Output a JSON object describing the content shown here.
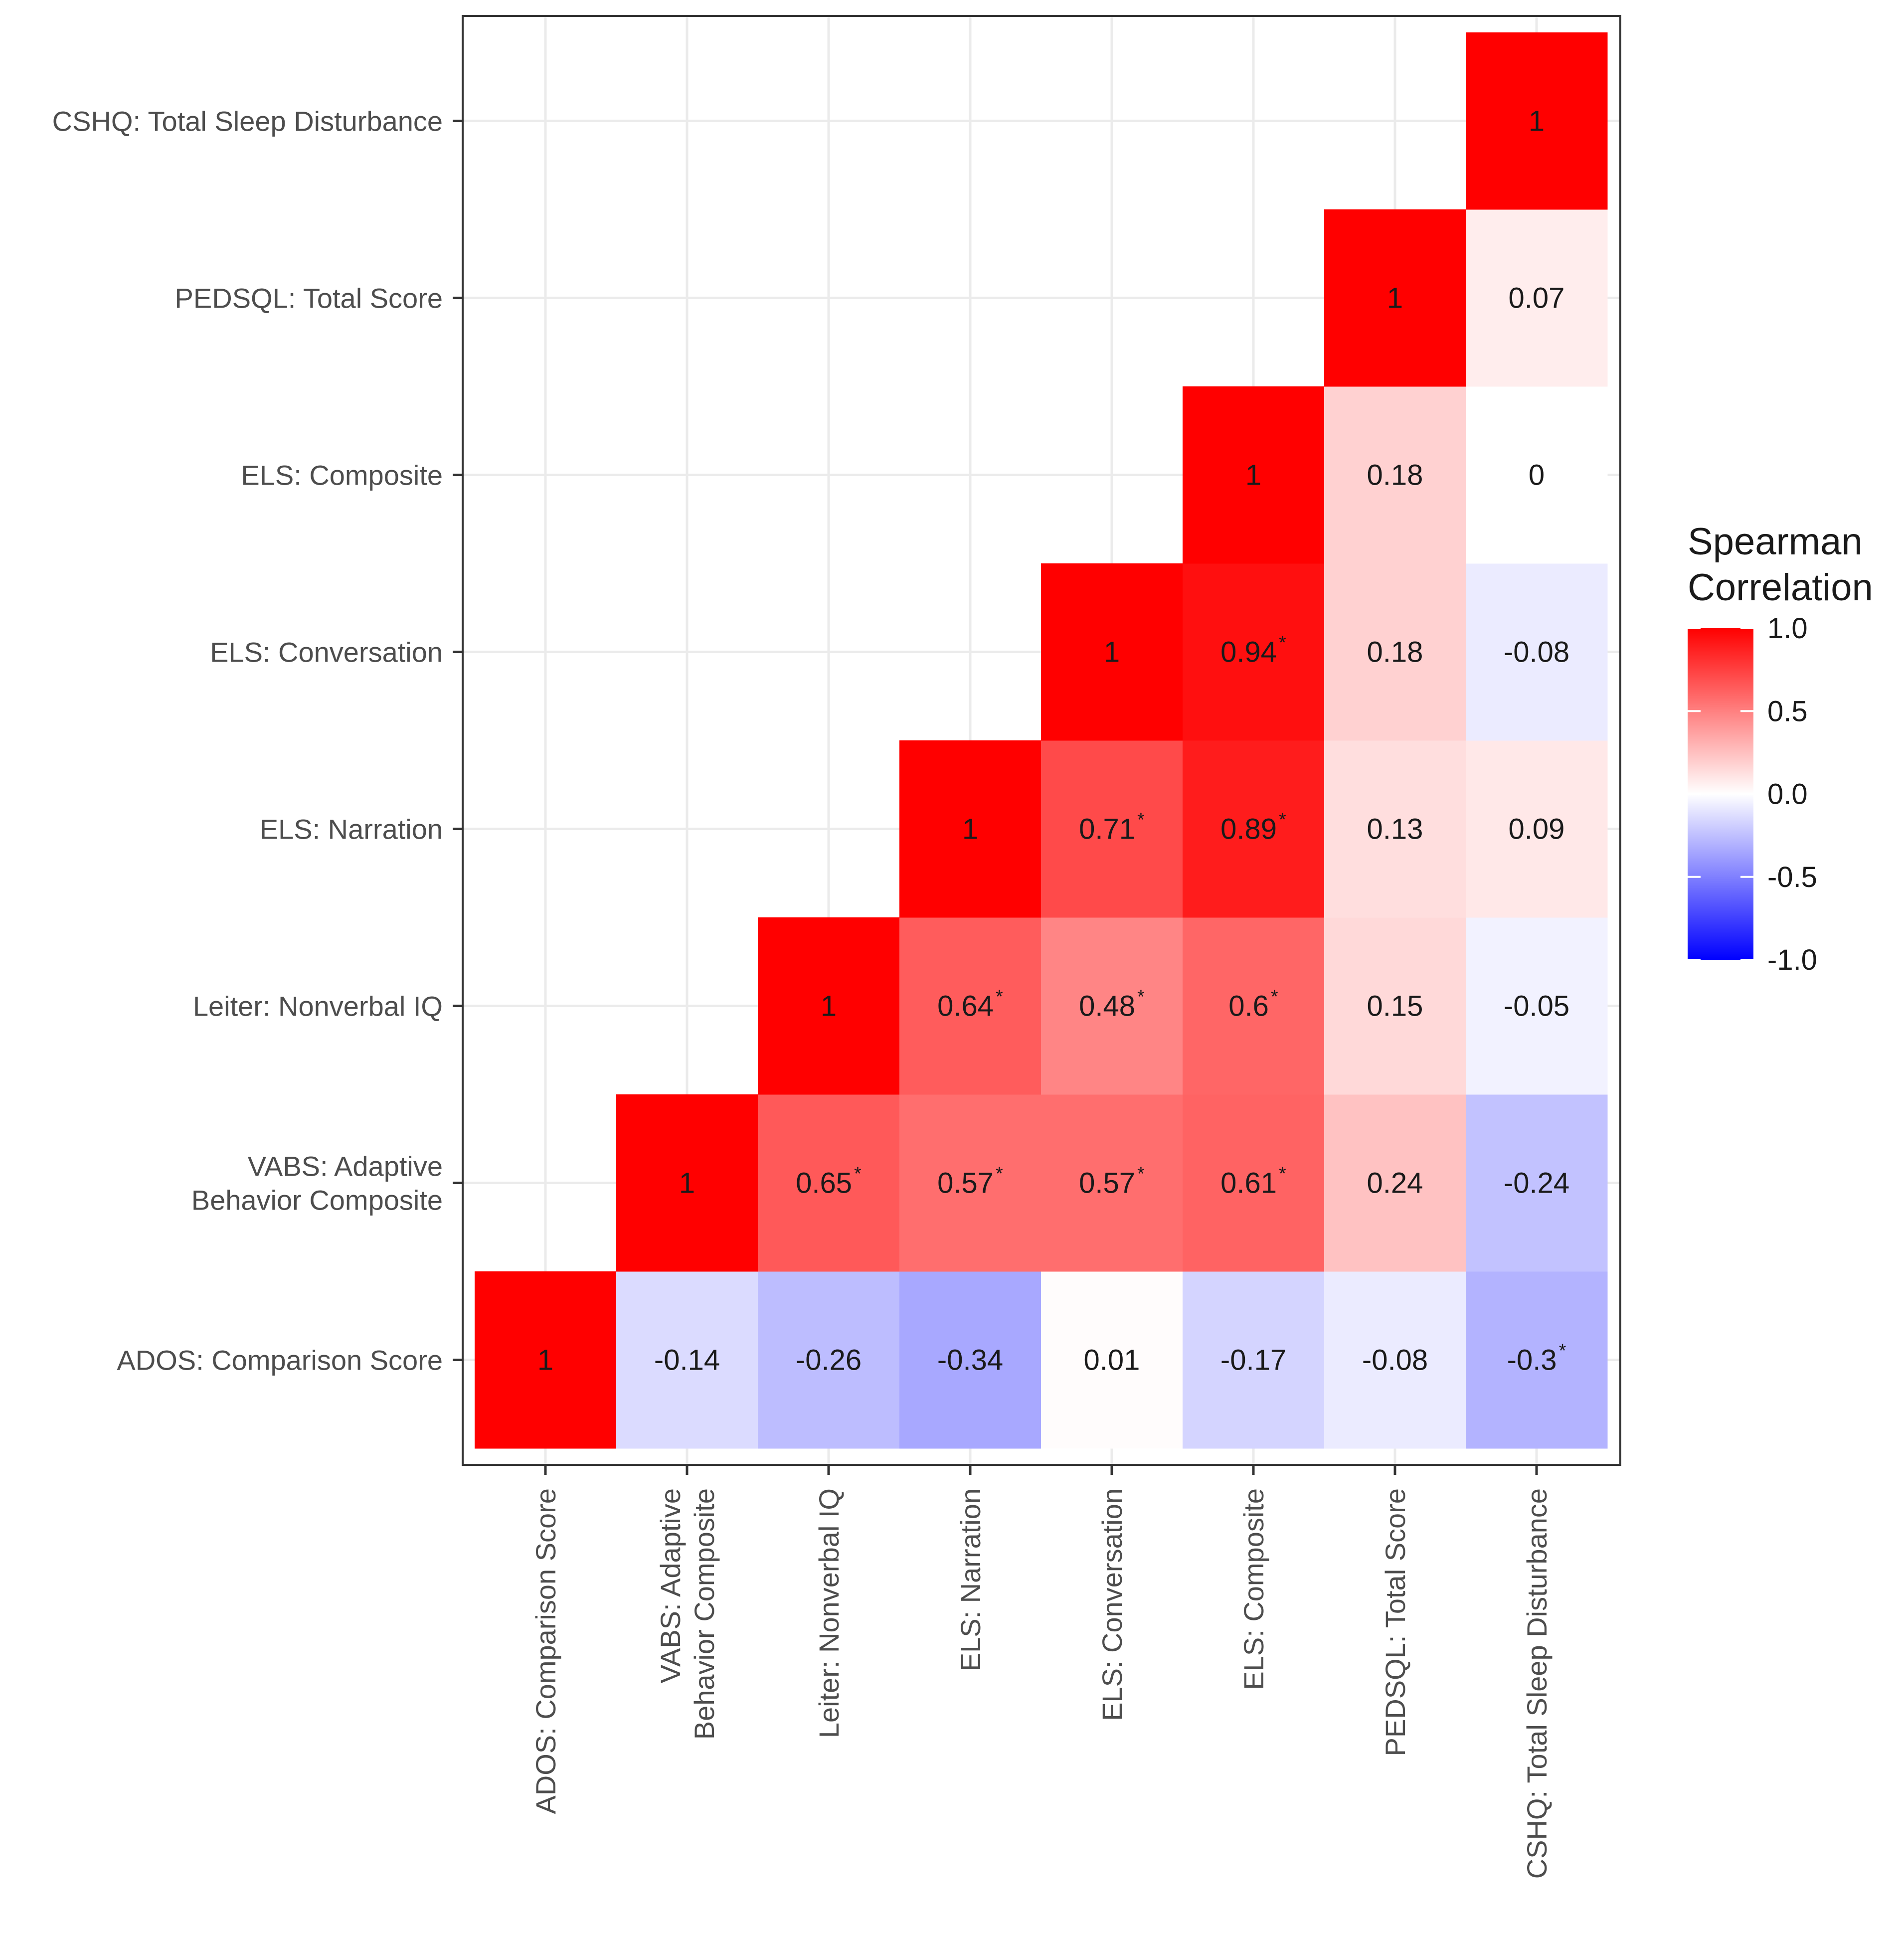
{
  "chart_data": {
    "type": "heatmap",
    "title": "",
    "xlabel": "",
    "ylabel": "",
    "variables": [
      "ADOS: Comparison Score",
      "VABS: Adaptive\nBehavior Composite",
      "Leiter: Nonverbal IQ",
      "ELS: Narration",
      "ELS: Conversation",
      "ELS: Composite",
      "PEDSQL: Total Score",
      "CSHQ: Total Sleep Disturbance"
    ],
    "cells": [
      {
        "x": 0,
        "y": 0,
        "value": 1,
        "label": "1",
        "sig": false
      },
      {
        "x": 1,
        "y": 0,
        "value": -0.14,
        "label": "-0.14",
        "sig": false
      },
      {
        "x": 2,
        "y": 0,
        "value": -0.26,
        "label": "-0.26",
        "sig": false
      },
      {
        "x": 3,
        "y": 0,
        "value": -0.34,
        "label": "-0.34",
        "sig": false
      },
      {
        "x": 4,
        "y": 0,
        "value": 0.01,
        "label": "0.01",
        "sig": false
      },
      {
        "x": 5,
        "y": 0,
        "value": -0.17,
        "label": "-0.17",
        "sig": false
      },
      {
        "x": 6,
        "y": 0,
        "value": -0.08,
        "label": "-0.08",
        "sig": false
      },
      {
        "x": 7,
        "y": 0,
        "value": -0.3,
        "label": "-0.3",
        "sig": true
      },
      {
        "x": 1,
        "y": 1,
        "value": 1,
        "label": "1",
        "sig": false
      },
      {
        "x": 2,
        "y": 1,
        "value": 0.65,
        "label": "0.65",
        "sig": true
      },
      {
        "x": 3,
        "y": 1,
        "value": 0.57,
        "label": "0.57",
        "sig": true
      },
      {
        "x": 4,
        "y": 1,
        "value": 0.57,
        "label": "0.57",
        "sig": true
      },
      {
        "x": 5,
        "y": 1,
        "value": 0.61,
        "label": "0.61",
        "sig": true
      },
      {
        "x": 6,
        "y": 1,
        "value": 0.24,
        "label": "0.24",
        "sig": false
      },
      {
        "x": 7,
        "y": 1,
        "value": -0.24,
        "label": "-0.24",
        "sig": false
      },
      {
        "x": 2,
        "y": 2,
        "value": 1,
        "label": "1",
        "sig": false
      },
      {
        "x": 3,
        "y": 2,
        "value": 0.64,
        "label": "0.64",
        "sig": true
      },
      {
        "x": 4,
        "y": 2,
        "value": 0.48,
        "label": "0.48",
        "sig": true
      },
      {
        "x": 5,
        "y": 2,
        "value": 0.6,
        "label": "0.6",
        "sig": true
      },
      {
        "x": 6,
        "y": 2,
        "value": 0.15,
        "label": "0.15",
        "sig": false
      },
      {
        "x": 7,
        "y": 2,
        "value": -0.05,
        "label": "-0.05",
        "sig": false
      },
      {
        "x": 3,
        "y": 3,
        "value": 1,
        "label": "1",
        "sig": false
      },
      {
        "x": 4,
        "y": 3,
        "value": 0.71,
        "label": "0.71",
        "sig": true
      },
      {
        "x": 5,
        "y": 3,
        "value": 0.89,
        "label": "0.89",
        "sig": true
      },
      {
        "x": 6,
        "y": 3,
        "value": 0.13,
        "label": "0.13",
        "sig": false
      },
      {
        "x": 7,
        "y": 3,
        "value": 0.09,
        "label": "0.09",
        "sig": false
      },
      {
        "x": 4,
        "y": 4,
        "value": 1,
        "label": "1",
        "sig": false
      },
      {
        "x": 5,
        "y": 4,
        "value": 0.94,
        "label": "0.94",
        "sig": true
      },
      {
        "x": 6,
        "y": 4,
        "value": 0.18,
        "label": "0.18",
        "sig": false
      },
      {
        "x": 7,
        "y": 4,
        "value": -0.08,
        "label": "-0.08",
        "sig": false
      },
      {
        "x": 5,
        "y": 5,
        "value": 1,
        "label": "1",
        "sig": false
      },
      {
        "x": 6,
        "y": 5,
        "value": 0.18,
        "label": "0.18",
        "sig": false
      },
      {
        "x": 7,
        "y": 5,
        "value": 0,
        "label": "0",
        "sig": false
      },
      {
        "x": 6,
        "y": 6,
        "value": 1,
        "label": "1",
        "sig": false
      },
      {
        "x": 7,
        "y": 6,
        "value": 0.07,
        "label": "0.07",
        "sig": false
      },
      {
        "x": 7,
        "y": 7,
        "value": 1,
        "label": "1",
        "sig": false
      }
    ],
    "significance_marker": "*",
    "legend": {
      "title": [
        "Spearman",
        "Correlation"
      ],
      "ticks": [
        1.0,
        0.5,
        0.0,
        -0.5,
        -1.0
      ],
      "tick_labels": [
        "1.0",
        "0.5",
        "0.0",
        "-0.5",
        "-1.0"
      ],
      "range": [
        -1,
        1
      ],
      "colors": {
        "low": "#0000ff",
        "mid": "#ffffff",
        "high": "#ff0000"
      },
      "placement": "right"
    },
    "grid": true
  }
}
